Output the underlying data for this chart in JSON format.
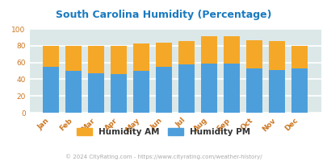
{
  "months": [
    "Jan",
    "Feb",
    "Mar",
    "Apr",
    "May",
    "Jun",
    "Jul",
    "Aug",
    "Sep",
    "Oct",
    "Nov",
    "Dec"
  ],
  "humidity_pm": [
    55,
    50,
    47,
    46,
    50,
    55,
    58,
    59,
    59,
    53,
    51,
    53
  ],
  "humidity_am": [
    25,
    30,
    33,
    34,
    33,
    29,
    28,
    32,
    32,
    34,
    35,
    27
  ],
  "color_pm": "#4d9fdc",
  "color_am": "#f5a828",
  "title": "South Carolina Humidity (Percentage)",
  "title_color": "#1a7abf",
  "footer": "© 2024 CityRating.com - https://www.cityrating.com/weather-history/",
  "footer_color": "#aaaaaa",
  "legend_am": "Humidity AM",
  "legend_pm": "Humidity PM",
  "legend_text_color": "#333333",
  "ylim": [
    0,
    100
  ],
  "yticks": [
    0,
    20,
    40,
    60,
    80,
    100
  ],
  "bg_plot": "#dce8e8",
  "bg_fig": "#ffffff",
  "bar_width": 0.72,
  "grid_color": "#ffffff",
  "tick_label_color": "#cc7722"
}
